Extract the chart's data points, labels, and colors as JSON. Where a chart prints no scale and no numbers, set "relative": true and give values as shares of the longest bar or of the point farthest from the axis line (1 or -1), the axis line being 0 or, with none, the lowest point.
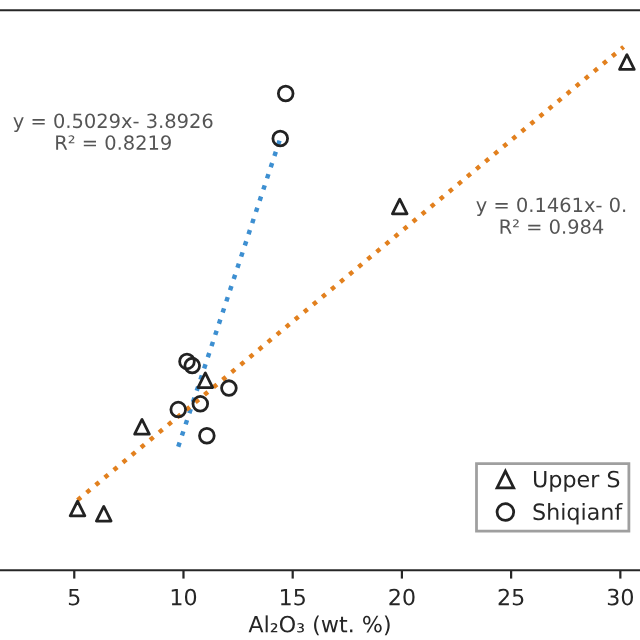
{
  "chart_data": {
    "type": "scatter",
    "relative": true,
    "xlabel": "Al₂O₃ (wt. %)",
    "xlim": [
      1.6,
      30.9
    ],
    "xticks": [
      5,
      10,
      15,
      20,
      25,
      30
    ],
    "tick_labels": "x",
    "grid": false,
    "legend": "bottom right",
    "series": [
      {
        "name": "Upper S",
        "marker": "triangle",
        "color": "#222222",
        "x": [
          30.3,
          19.9,
          8.1,
          5.15,
          6.35,
          11.0
        ],
        "values": [
          0.971,
          0.695,
          0.274,
          0.118,
          0.108,
          0.363
        ]
      },
      {
        "name": "Shiqianf",
        "marker": "circle",
        "color": "#222222",
        "x": [
          14.68,
          14.43,
          10.16,
          10.4,
          12.08,
          9.76,
          10.77,
          11.07
        ],
        "values": [
          0.911,
          0.825,
          0.399,
          0.391,
          0.348,
          0.307,
          0.318,
          0.257
        ]
      },
      {
        "type": "line",
        "line_style": "dotted",
        "color": "#3d8fd1",
        "x": [
          9.76,
          14.43
        ],
        "values": [
          0.236,
          0.825
        ]
      },
      {
        "type": "line",
        "line_style": "dotted",
        "color": "#e2801e",
        "x": [
          5.15,
          30.15
        ],
        "values": [
          0.134,
          1.0
        ]
      }
    ],
    "annotations": [
      "y = 0.5029x- 3.8926\nR² = 0.8219",
      "y = 0.1461x- 0.\nR² = 0.984"
    ]
  }
}
